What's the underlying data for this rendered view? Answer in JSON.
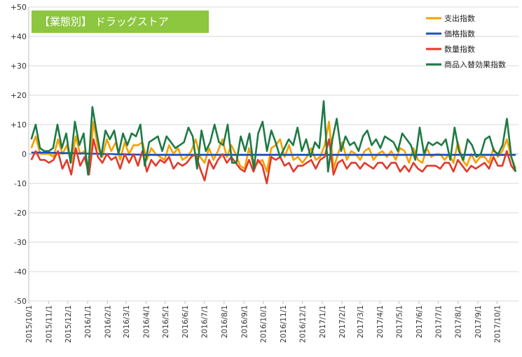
{
  "chart_data": {
    "type": "line",
    "title": "【業態別】 ドラッグストア",
    "xlabel": "",
    "ylabel": "",
    "ylim": [
      -50,
      50
    ],
    "yticks": [
      50,
      40,
      30,
      20,
      10,
      0,
      -10,
      -20,
      -30,
      -40,
      -50
    ],
    "ytick_labels": [
      "+50",
      "+40",
      "+30",
      "+20",
      "+10",
      "0",
      "-10",
      "-20",
      "-30",
      "-40",
      "-50"
    ],
    "grid": true,
    "legend_position": "top-right",
    "x_start": "2015-10-05",
    "x_end": "2017-10-30",
    "xtick_dates": [
      "2015-10-01",
      "2015-11-01",
      "2015-12-01",
      "2016-01-01",
      "2016-02-01",
      "2016-03-01",
      "2016-04-01",
      "2016-05-01",
      "2016-06-01",
      "2016-07-01",
      "2016-08-01",
      "2016-09-01",
      "2016-10-01",
      "2016-11-01",
      "2016-12-01",
      "2017-01-01",
      "2017-02-01",
      "2017-03-01",
      "2017-04-01",
      "2017-05-01",
      "2017-06-01",
      "2017-07-01",
      "2017-08-01",
      "2017-09-01",
      "2017-10-01"
    ],
    "xtick_labels": [
      "2015/10/1",
      "2015/11/1",
      "2015/12/1",
      "2016/1/1",
      "2016/2/1",
      "2016/3/1",
      "2016/4/1",
      "2016/5/1",
      "2016/6/1",
      "2016/7/1",
      "2016/8/1",
      "2016/9/1",
      "2016/10/1",
      "2016/11/1",
      "2016/12/1",
      "2017/1/1",
      "2017/2/1",
      "2017/3/1",
      "2017/4/1",
      "2017/5/1",
      "2017/6/1",
      "2017/7/1",
      "2017/8/1",
      "2017/9/1",
      "2017/10/1"
    ],
    "series": [
      {
        "name": "支出指数",
        "color": "#f5a000",
        "values": [
          2,
          6,
          0,
          0,
          0,
          -1,
          5,
          0,
          3,
          -3,
          6,
          0,
          1,
          -6,
          11,
          2,
          -1,
          5,
          1,
          4,
          -2,
          4,
          0,
          3,
          3,
          4,
          -2,
          2,
          0,
          -1,
          -2,
          3,
          0,
          2,
          -2,
          -1,
          1,
          5,
          -1,
          -3,
          2,
          -2,
          1,
          5,
          -1,
          3,
          0,
          -4,
          -5,
          2,
          -4,
          -3,
          -2,
          -6,
          2,
          3,
          5,
          -1,
          3,
          -2,
          -1,
          -3,
          -1,
          2,
          -2,
          -1,
          3,
          11,
          -5,
          0,
          4,
          -2,
          1,
          0,
          -2,
          1,
          2,
          -2,
          0,
          1,
          -1,
          1,
          -2,
          2,
          1,
          -3,
          2,
          -2,
          -3,
          2,
          -1,
          0,
          0,
          -2,
          0,
          -3,
          4,
          -2,
          -4,
          0,
          -3,
          -1,
          -1,
          -3,
          2,
          -1,
          1,
          5,
          -1,
          -5
        ]
      },
      {
        "name": "価格指数",
        "color": "#1f4fbf",
        "values": [
          0.5,
          0.5,
          0.5,
          0.5,
          0.5,
          0.4,
          0.4,
          0.3,
          0.3,
          0.3,
          0.2,
          0.2,
          0.2,
          0.1,
          0.1,
          0.1,
          0.0,
          0.0,
          0.0,
          -0.1,
          -0.1,
          -0.1,
          -0.2,
          -0.2,
          -0.2,
          -0.3,
          -0.3,
          -0.3,
          -0.3,
          -0.3,
          -0.3,
          -0.3,
          -0.3,
          -0.3,
          -0.3,
          -0.3,
          -0.3,
          -0.3,
          -0.3,
          -0.3,
          -0.3,
          -0.3,
          -0.3,
          -0.3,
          -0.3,
          -0.3,
          -0.3,
          -0.3,
          -0.3,
          -0.3,
          -0.3,
          -0.3,
          -0.3,
          -0.3,
          -0.3,
          -0.3,
          -0.3,
          -0.3,
          -0.3,
          -0.3,
          -0.3,
          -0.3,
          -0.3,
          -0.3,
          -0.3,
          -0.3,
          -0.3,
          -0.3,
          -0.3,
          -0.3,
          -0.3,
          -0.3,
          -0.3,
          -0.3,
          -0.3,
          -0.3,
          -0.3,
          -0.3,
          -0.3,
          -0.3,
          -0.3,
          -0.3,
          -0.3,
          -0.3,
          -0.3,
          -0.3,
          -0.3,
          -0.3,
          -0.3,
          -0.3,
          -0.3,
          -0.3,
          -0.3,
          -0.3,
          -0.3,
          -0.3,
          -0.3,
          -0.3,
          -0.3,
          -0.3,
          -0.3,
          -0.3,
          -0.3,
          -0.3,
          -0.3,
          -0.3,
          -0.3,
          -0.3,
          -0.3,
          -0.3
        ]
      },
      {
        "name": "数量指数",
        "color": "#e03a2a",
        "values": [
          -2,
          1,
          -2,
          -2,
          -3,
          -2,
          1,
          -5,
          -2,
          -7,
          2,
          -4,
          -1,
          -7,
          5,
          -1,
          -3,
          0,
          -2,
          -1,
          -5,
          0,
          -3,
          0,
          -4,
          1,
          -6,
          -2,
          -4,
          -2,
          -3,
          -1,
          -5,
          -3,
          -4,
          -3,
          -1,
          0,
          -5,
          -9,
          -2,
          -5,
          -2,
          0,
          -3,
          -1,
          -3,
          -5,
          -6,
          -2,
          -6,
          -2,
          -4,
          -10,
          -1,
          -2,
          -1,
          -4,
          -3,
          -6,
          -4,
          -4,
          -3,
          -2,
          -5,
          -2,
          -1,
          5,
          -7,
          -3,
          -2,
          -5,
          -3,
          -3,
          -5,
          -3,
          -4,
          -5,
          -3,
          -3,
          -5,
          -3,
          -3,
          -6,
          -4,
          -6,
          -3,
          -5,
          -6,
          -4,
          -4,
          -4,
          -5,
          -3,
          -3,
          -6,
          -2,
          -4,
          -6,
          -4,
          -5,
          -4,
          -3,
          -5,
          -1,
          -4,
          -4,
          1,
          -4,
          -6
        ]
      },
      {
        "name": "商品入替効果指数",
        "color": "#1e7a45",
        "values": [
          5,
          10,
          2,
          1,
          1,
          2,
          10,
          2,
          7,
          -3,
          11,
          3,
          7,
          -7,
          16,
          7,
          -1,
          8,
          5,
          8,
          0,
          7,
          3,
          7,
          6,
          10,
          -4,
          4,
          5,
          6,
          1,
          6,
          4,
          2,
          3,
          4,
          9,
          6,
          -5,
          8,
          1,
          4,
          10,
          4,
          3,
          10,
          -3,
          -3,
          6,
          1,
          7,
          -5,
          7,
          11,
          1,
          8,
          4,
          -1,
          2,
          5,
          3,
          9,
          1,
          5,
          -1,
          4,
          2,
          18,
          -6,
          5,
          12,
          1,
          6,
          3,
          4,
          1,
          6,
          8,
          3,
          5,
          2,
          6,
          5,
          4,
          1,
          7,
          5,
          3,
          -2,
          9,
          0,
          4,
          3,
          4,
          3,
          5,
          -2,
          9,
          1,
          -2,
          5,
          3,
          -1,
          0,
          5,
          6,
          1,
          0,
          3,
          12,
          -1,
          -6
        ]
      }
    ]
  }
}
